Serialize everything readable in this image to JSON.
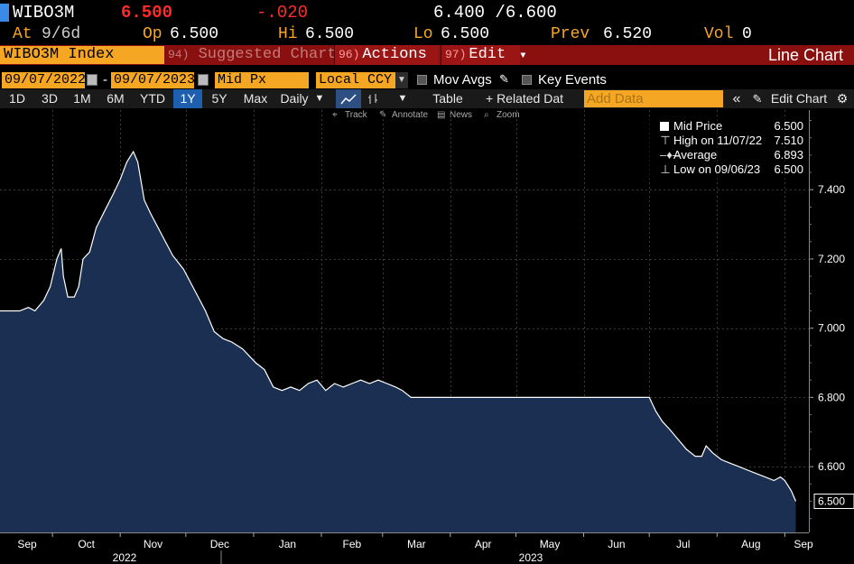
{
  "header": {
    "ticker": "WIBO3M",
    "last": "6.500",
    "change": "-.020",
    "bid_ask": "6.400 /6.600",
    "at_label": "At",
    "at_value": "9/6d",
    "open_label": "Op",
    "open_value": "6.500",
    "high_label": "Hi",
    "high_value": "6.500",
    "low_label": "Lo",
    "low_value": "6.500",
    "prev_label": "Prev",
    "prev_value": "6.520",
    "vol_label": "Vol",
    "vol_value": "0"
  },
  "security_bar": {
    "security": "WIBO3M Index",
    "suggested_num": "94)",
    "suggested_label": "Suggested Charts",
    "actions_num": "96)",
    "actions_label": "Actions",
    "edit_num": "97)",
    "edit_label": "Edit",
    "view_label": "Line Chart"
  },
  "params": {
    "start_date": "09/07/2022",
    "date_sep": "-",
    "end_date": "09/07/2023",
    "field": "Mid Px",
    "currency": "Local CCY",
    "mov_avgs_label": "Mov Avgs",
    "key_events_label": "Key Events"
  },
  "toolbar": {
    "periods": [
      "1D",
      "3D",
      "1M",
      "6M",
      "YTD",
      "1Y",
      "5Y",
      "Max"
    ],
    "active_period": "1Y",
    "frequency": "Daily",
    "table_label": "Table",
    "related_label": "+ Related Dat",
    "add_data_placeholder": "Add Data",
    "edit_chart_label": "Edit Chart"
  },
  "subtoolbar": {
    "track": "Track",
    "annotate": "Annotate",
    "news": "News",
    "zoom": "Zoom"
  },
  "legend": {
    "series_name": "Mid Price",
    "series_value": "6.500",
    "high_label": "High on 11/07/22",
    "high_value": "7.510",
    "avg_label": "Average",
    "avg_value": "6.893",
    "low_label": "Low on 09/06/23",
    "low_value": "6.500"
  },
  "colors": {
    "amber": "#f5a623",
    "red": "#ff2b2b",
    "area_fill": "#1b2f52",
    "line": "#ffffff",
    "security_bar": "#8a1010"
  },
  "chart_data": {
    "type": "area",
    "y_axis_side": "right",
    "ylim": [
      6.41,
      7.63
    ],
    "y_ticks": [
      "6.600",
      "6.800",
      "7.000",
      "7.200",
      "7.400"
    ],
    "last_value_label": "6.500",
    "x_month_labels": [
      "Sep",
      "Oct",
      "Nov",
      "Dec",
      "Jan",
      "Feb",
      "Mar",
      "Apr",
      "May",
      "Jun",
      "Jul",
      "Aug",
      "Sep"
    ],
    "x_year_labels": [
      "2022",
      "2023"
    ],
    "series": [
      {
        "name": "Mid Price",
        "points": [
          [
            "2022-09-07",
            7.05
          ],
          [
            "2022-09-12",
            7.05
          ],
          [
            "2022-09-16",
            7.05
          ],
          [
            "2022-09-20",
            7.06
          ],
          [
            "2022-09-23",
            7.05
          ],
          [
            "2022-09-27",
            7.08
          ],
          [
            "2022-09-30",
            7.12
          ],
          [
            "2022-10-03",
            7.2
          ],
          [
            "2022-10-05",
            7.23
          ],
          [
            "2022-10-06",
            7.15
          ],
          [
            "2022-10-08",
            7.09
          ],
          [
            "2022-10-11",
            7.09
          ],
          [
            "2022-10-13",
            7.12
          ],
          [
            "2022-10-15",
            7.2
          ],
          [
            "2022-10-18",
            7.22
          ],
          [
            "2022-10-21",
            7.29
          ],
          [
            "2022-10-25",
            7.34
          ],
          [
            "2022-10-29",
            7.39
          ],
          [
            "2022-11-01",
            7.43
          ],
          [
            "2022-11-04",
            7.48
          ],
          [
            "2022-11-07",
            7.51
          ],
          [
            "2022-11-09",
            7.48
          ],
          [
            "2022-11-12",
            7.37
          ],
          [
            "2022-11-15",
            7.33
          ],
          [
            "2022-11-20",
            7.27
          ],
          [
            "2022-11-25",
            7.21
          ],
          [
            "2022-11-30",
            7.17
          ],
          [
            "2022-12-05",
            7.11
          ],
          [
            "2022-12-10",
            7.05
          ],
          [
            "2022-12-14",
            6.99
          ],
          [
            "2022-12-18",
            6.97
          ],
          [
            "2022-12-22",
            6.96
          ],
          [
            "2022-12-27",
            6.94
          ],
          [
            "2023-01-02",
            6.9
          ],
          [
            "2023-01-06",
            6.88
          ],
          [
            "2023-01-10",
            6.83
          ],
          [
            "2023-01-14",
            6.82
          ],
          [
            "2023-01-18",
            6.83
          ],
          [
            "2023-01-22",
            6.82
          ],
          [
            "2023-01-26",
            6.84
          ],
          [
            "2023-01-30",
            6.85
          ],
          [
            "2023-02-03",
            6.82
          ],
          [
            "2023-02-07",
            6.84
          ],
          [
            "2023-02-11",
            6.83
          ],
          [
            "2023-02-15",
            6.84
          ],
          [
            "2023-02-19",
            6.85
          ],
          [
            "2023-02-23",
            6.84
          ],
          [
            "2023-02-27",
            6.85
          ],
          [
            "2023-03-03",
            6.84
          ],
          [
            "2023-03-07",
            6.83
          ],
          [
            "2023-03-10",
            6.82
          ],
          [
            "2023-03-14",
            6.8
          ],
          [
            "2023-03-20",
            6.8
          ],
          [
            "2023-04-01",
            6.8
          ],
          [
            "2023-04-15",
            6.8
          ],
          [
            "2023-05-01",
            6.8
          ],
          [
            "2023-05-15",
            6.8
          ],
          [
            "2023-06-01",
            6.8
          ],
          [
            "2023-06-15",
            6.8
          ],
          [
            "2023-07-01",
            6.8
          ],
          [
            "2023-07-04",
            6.76
          ],
          [
            "2023-07-07",
            6.73
          ],
          [
            "2023-07-10",
            6.71
          ],
          [
            "2023-07-14",
            6.68
          ],
          [
            "2023-07-18",
            6.65
          ],
          [
            "2023-07-22",
            6.63
          ],
          [
            "2023-07-25",
            6.63
          ],
          [
            "2023-07-27",
            6.66
          ],
          [
            "2023-07-30",
            6.64
          ],
          [
            "2023-08-03",
            6.62
          ],
          [
            "2023-08-07",
            6.61
          ],
          [
            "2023-08-11",
            6.6
          ],
          [
            "2023-08-15",
            6.59
          ],
          [
            "2023-08-19",
            6.58
          ],
          [
            "2023-08-23",
            6.57
          ],
          [
            "2023-08-27",
            6.56
          ],
          [
            "2023-08-30",
            6.57
          ],
          [
            "2023-09-01",
            6.56
          ],
          [
            "2023-09-04",
            6.53
          ],
          [
            "2023-09-06",
            6.5
          ]
        ]
      }
    ]
  }
}
